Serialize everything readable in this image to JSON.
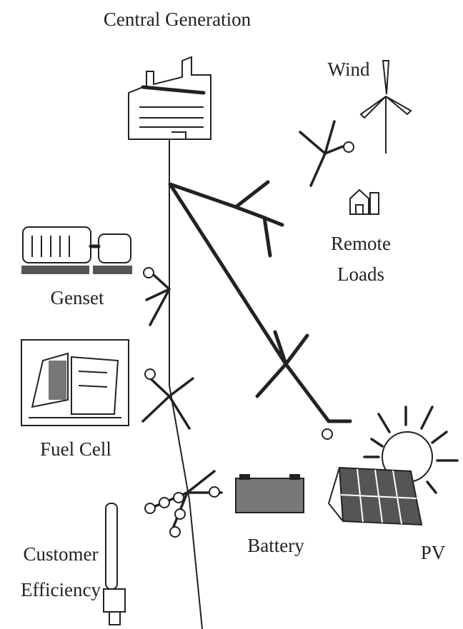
{
  "nodes": [
    {
      "label": "Central Generation"
    },
    {
      "label": "Wind"
    },
    {
      "label": [
        "Remote",
        "Loads"
      ]
    },
    {
      "label": "Genset"
    },
    {
      "label": "Fuel Cell"
    },
    {
      "label": "Battery"
    },
    {
      "label": "PV"
    },
    {
      "label": [
        "Customer",
        "Efficiency"
      ]
    }
  ]
}
